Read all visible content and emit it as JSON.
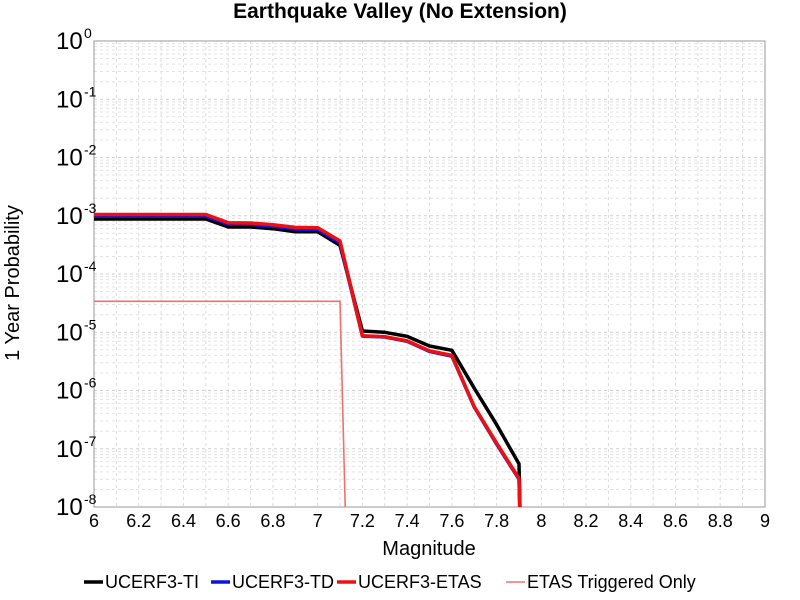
{
  "chart_data": {
    "type": "line",
    "title": "Earthquake Valley (No  Extension)",
    "xlabel": "Magnitude",
    "ylabel": "1 Year Probability",
    "xlim": [
      6,
      9
    ],
    "ylim": [
      1e-08,
      1
    ],
    "yscale": "log",
    "grid": true,
    "legend_position": "bottom",
    "x_ticks": [
      "6",
      "6.2",
      "6.4",
      "6.6",
      "6.8",
      "7",
      "7.2",
      "7.4",
      "7.6",
      "7.8",
      "8",
      "8.2",
      "8.4",
      "8.6",
      "8.8",
      "9"
    ],
    "y_ticks": [
      {
        "base": "10",
        "exp": "0"
      },
      {
        "base": "10",
        "exp": "-1"
      },
      {
        "base": "10",
        "exp": "-2"
      },
      {
        "base": "10",
        "exp": "-3"
      },
      {
        "base": "10",
        "exp": "-4"
      },
      {
        "base": "10",
        "exp": "-5"
      },
      {
        "base": "10",
        "exp": "-6"
      },
      {
        "base": "10",
        "exp": "-7"
      },
      {
        "base": "10",
        "exp": "-8"
      }
    ],
    "series": [
      {
        "name": "UCERF3-TI",
        "color": "#000000",
        "x": [
          6.0,
          6.1,
          6.2,
          6.3,
          6.4,
          6.5,
          6.6,
          6.7,
          6.8,
          6.9,
          7.0,
          7.1,
          7.2,
          7.3,
          7.4,
          7.5,
          7.6,
          7.7,
          7.8,
          7.9,
          7.91
        ],
        "y": [
          0.00088,
          0.00088,
          0.00088,
          0.00088,
          0.00088,
          0.00088,
          0.00064,
          0.00064,
          0.0006,
          0.00053,
          0.00053,
          0.00031,
          1.05e-05,
          1e-05,
          8.5e-06,
          5.8e-06,
          4.9e-06,
          1.1e-06,
          2.6e-07,
          5.5e-08,
          1e-09
        ]
      },
      {
        "name": "UCERF3-TD",
        "color": "#1010e0",
        "x": [
          6.0,
          6.1,
          6.2,
          6.3,
          6.4,
          6.5,
          6.6,
          6.7,
          6.8,
          6.9,
          7.0,
          7.1,
          7.2,
          7.3,
          7.4,
          7.5,
          7.6,
          7.7,
          7.8,
          7.9,
          7.91
        ],
        "y": [
          0.00098,
          0.00098,
          0.00098,
          0.00098,
          0.00098,
          0.00098,
          0.00072,
          0.00071,
          0.00066,
          0.00059,
          0.00058,
          0.00034,
          8.6e-06,
          8.3e-06,
          7e-06,
          4.7e-06,
          3.9e-06,
          5.2e-07,
          1.2e-07,
          3e-08,
          1e-09
        ]
      },
      {
        "name": "UCERF3-ETAS",
        "color": "#ee1010",
        "x": [
          6.0,
          6.1,
          6.2,
          6.3,
          6.4,
          6.5,
          6.6,
          6.7,
          6.8,
          6.9,
          7.0,
          7.1,
          7.2,
          7.3,
          7.4,
          7.5,
          7.6,
          7.7,
          7.8,
          7.9,
          7.91
        ],
        "y": [
          0.00105,
          0.00105,
          0.00105,
          0.00105,
          0.00105,
          0.00105,
          0.00076,
          0.00075,
          0.0007,
          0.00063,
          0.00062,
          0.00037,
          8.7e-06,
          8.4e-06,
          7.1e-06,
          4.8e-06,
          4e-06,
          5.3e-07,
          1.25e-07,
          3.1e-08,
          1e-09
        ]
      },
      {
        "name": "ETAS Triggered Only",
        "color": "#f07070",
        "x": [
          6.0,
          6.5,
          7.0,
          7.1,
          7.13
        ],
        "y": [
          3.4e-05,
          3.4e-05,
          3.4e-05,
          3.4e-05,
          1e-09
        ]
      }
    ]
  }
}
